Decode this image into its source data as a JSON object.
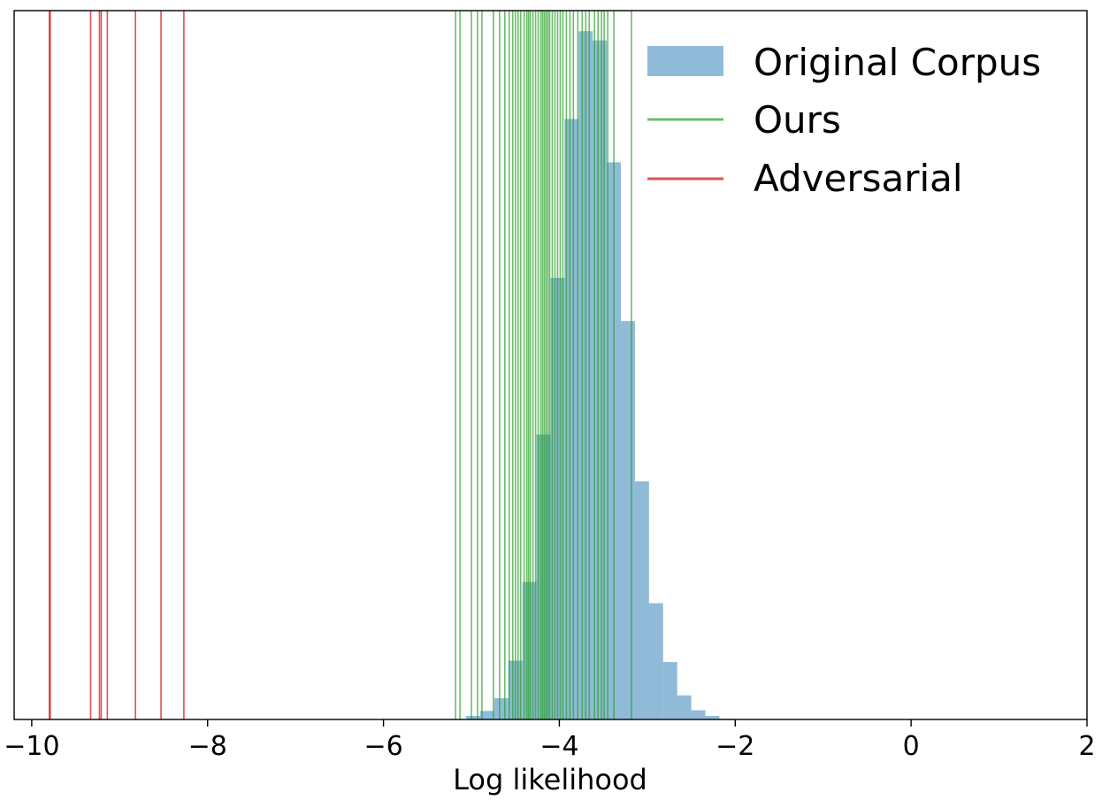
{
  "chart_data": {
    "type": "bar",
    "title": "",
    "xlabel": "Log likelihood",
    "ylabel": "",
    "xlim": [
      -10.2,
      2
    ],
    "ylim": [
      0,
      1.0
    ],
    "xticks": [
      -10,
      -8,
      -6,
      -4,
      -2,
      0,
      2
    ],
    "xtick_labels": [
      "−10",
      "−8",
      "−6",
      "−4",
      "−2",
      "0",
      "2"
    ],
    "yticks_shown": false,
    "grid": false,
    "legend_position": "top-right",
    "legend": [
      {
        "label": "Original Corpus",
        "kind": "patch",
        "color": "#1f77b4",
        "alpha": 0.5
      },
      {
        "label": "Ours",
        "kind": "line",
        "color": "#2ca02c",
        "alpha": 0.7
      },
      {
        "label": "Adversarial",
        "kind": "line",
        "color": "#d62728",
        "alpha": 0.8
      }
    ],
    "histogram": {
      "name": "Original Corpus",
      "bin_edges": [
        -5.06,
        -4.9,
        -4.74,
        -4.58,
        -4.42,
        -4.26,
        -4.1,
        -3.94,
        -3.78,
        -3.62,
        -3.46,
        -3.3,
        -3.14,
        -2.98,
        -2.82,
        -2.66,
        -2.5,
        -2.34,
        -2.18,
        -2.02
      ],
      "values": [
        0.005,
        0.012,
        0.03,
        0.083,
        0.194,
        0.402,
        0.623,
        0.847,
        0.971,
        0.958,
        0.786,
        0.562,
        0.336,
        0.164,
        0.081,
        0.034,
        0.013,
        0.005,
        0.001
      ]
    },
    "series": [
      {
        "name": "Ours",
        "x": [
          -5.18,
          -5.13,
          -5.0,
          -4.93,
          -4.88,
          -4.75,
          -4.68,
          -4.62,
          -4.57,
          -4.53,
          -4.5,
          -4.47,
          -4.44,
          -4.4,
          -4.37,
          -4.35,
          -4.33,
          -4.3,
          -4.27,
          -4.24,
          -4.21,
          -4.19,
          -4.17,
          -4.15,
          -4.13,
          -4.11,
          -4.08,
          -4.05,
          -4.02,
          -3.99,
          -3.96,
          -3.92,
          -3.88,
          -3.84,
          -3.79,
          -3.74,
          -3.7,
          -3.66,
          -3.6,
          -3.56,
          -3.52,
          -3.49,
          -3.45,
          -3.38,
          -3.18
        ]
      },
      {
        "name": "Adversarial",
        "x": [
          -9.8,
          -9.79,
          -9.33,
          -9.23,
          -9.21,
          -9.14,
          -8.82,
          -8.53,
          -8.27
        ]
      }
    ]
  }
}
